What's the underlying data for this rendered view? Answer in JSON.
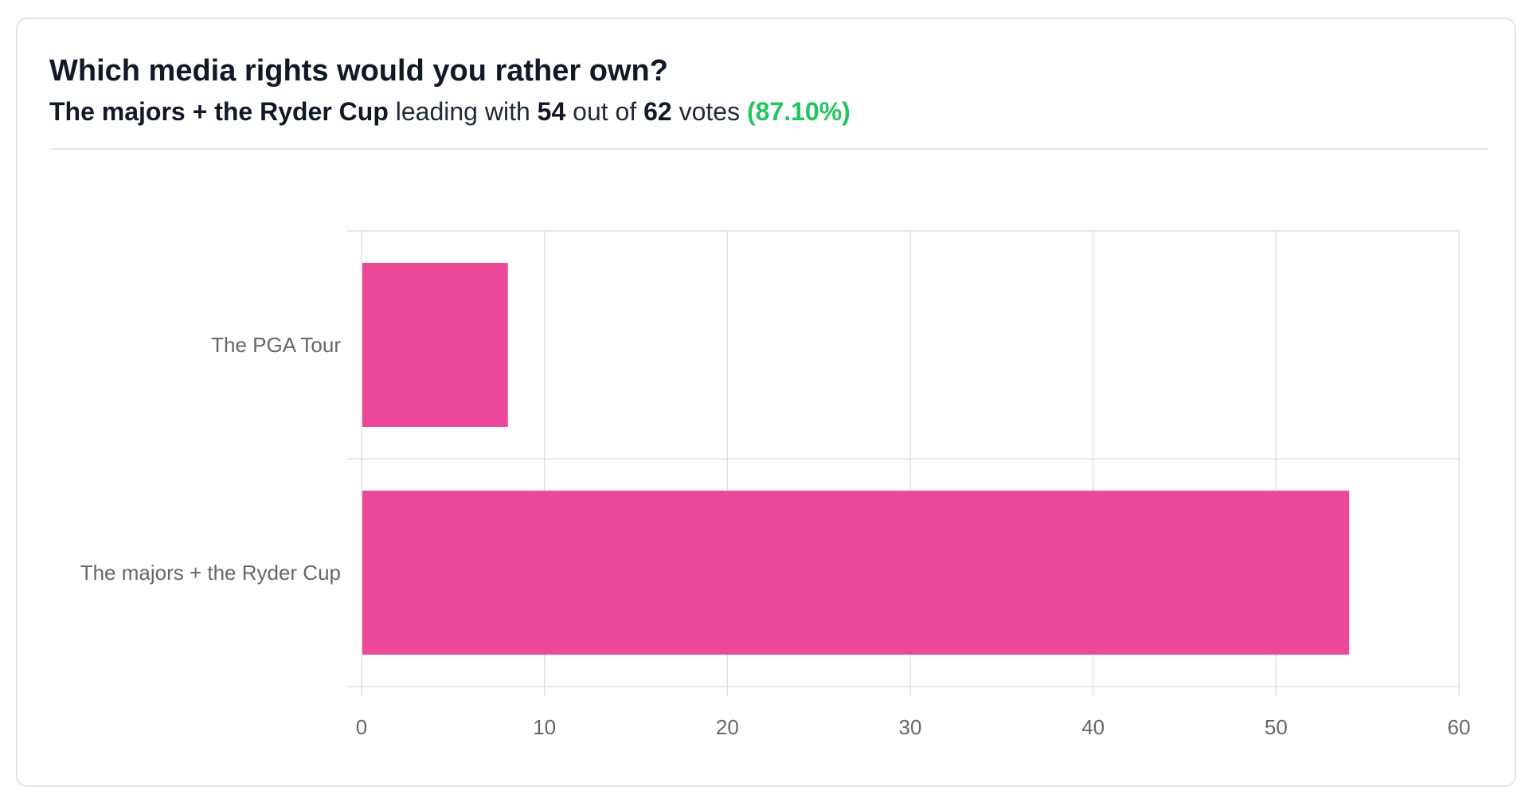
{
  "poll": {
    "question": "Which media rights would you rather own?",
    "leader": "The majors + the Ryder Cup",
    "leading_with_text": "leading with",
    "leader_votes": "54",
    "out_of_text": "out of",
    "total_votes": "62",
    "votes_text": "votes",
    "leader_percent": "(87.10%)"
  },
  "colors": {
    "bar": "#ec4899",
    "percent": "#22c55e",
    "grid": "#e0e0e0"
  },
  "chart_data": {
    "type": "bar",
    "orientation": "horizontal",
    "categories": [
      "The PGA Tour",
      "The majors + the Ryder Cup"
    ],
    "values": [
      8,
      54
    ],
    "xlim": [
      0,
      60
    ],
    "xticks": [
      0,
      10,
      20,
      30,
      40,
      50,
      60
    ],
    "title": "",
    "xlabel": "",
    "ylabel": "",
    "grid": true,
    "legend": "none"
  }
}
